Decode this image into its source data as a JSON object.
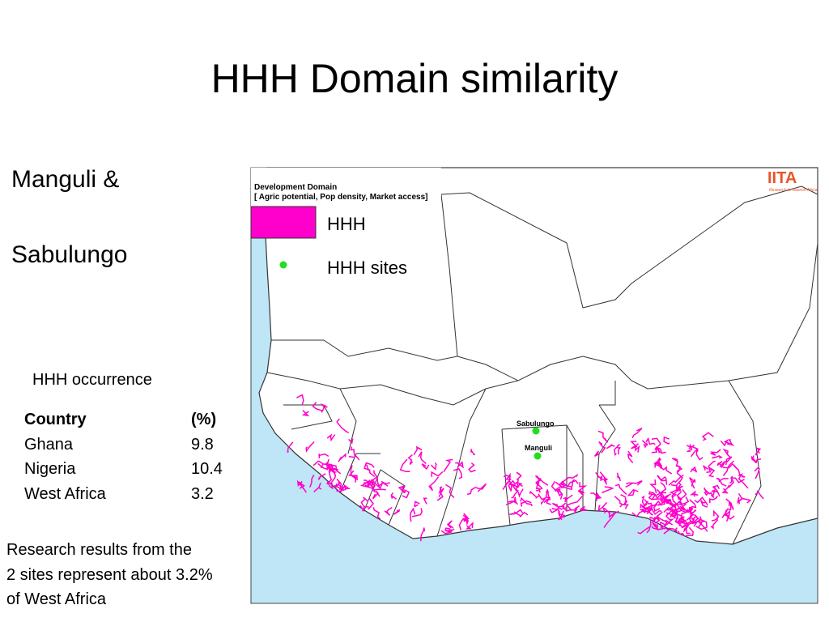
{
  "title": "HHH Domain similarity",
  "sites": [
    "Manguli &",
    "Sabulungo"
  ],
  "table": {
    "caption": "HHH occurrence",
    "header": [
      "Country",
      "(%)"
    ],
    "rows": [
      [
        "Ghana",
        "9.8"
      ],
      [
        "Nigeria",
        "10.4"
      ],
      [
        "West Africa",
        "3.2"
      ]
    ]
  },
  "note": [
    "Research results from the",
    "2 sites represent about 3.2%",
    "of West Africa"
  ],
  "map": {
    "legend_title": "Development Domain",
    "legend_subtitle": "[ Agric potential, Pop density, Market access]",
    "legend": [
      "HHH",
      "HHH sites"
    ],
    "site_labels": [
      "Sabulungo",
      "Manguli"
    ],
    "logo": "IITA",
    "logo_tagline": "Research to Nourish Africa"
  }
}
